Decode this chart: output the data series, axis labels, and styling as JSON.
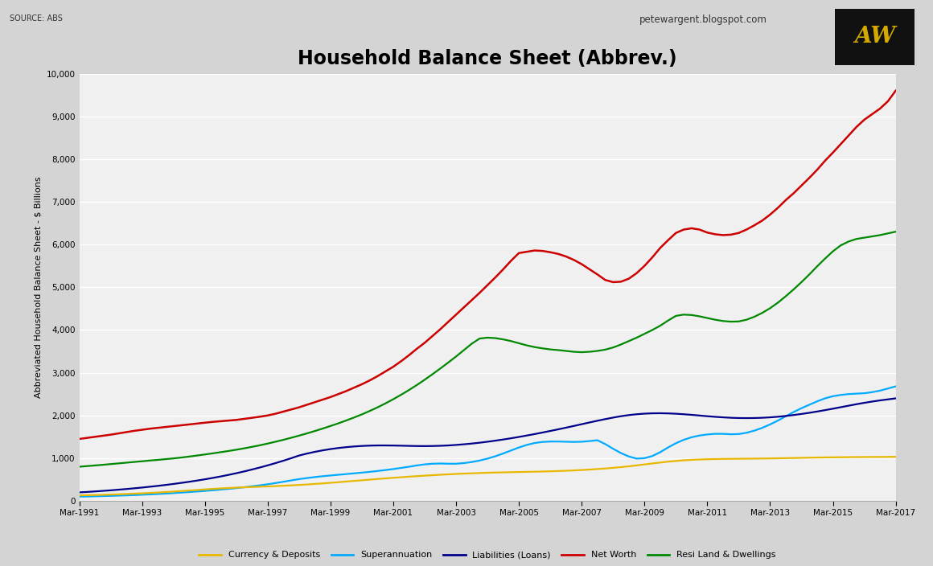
{
  "title": "Household Balance Sheet (Abbrev.)",
  "source_text": "SOURCE: ABS",
  "website_text": "petewargent.blogspot.com",
  "ylabel": "Abbreviated Household Balance Sheet - $ Billions",
  "background_color": "#d4d4d4",
  "plot_bg_color": "#f0f0f0",
  "x_labels": [
    "Mar-1991",
    "Mar-1993",
    "Mar-1995",
    "Mar-1997",
    "Mar-1999",
    "Mar-2001",
    "Mar-2003",
    "Mar-2005",
    "Mar-2007",
    "Mar-2009",
    "Mar-2011",
    "Mar-2013",
    "Mar-2015",
    "Mar-2017"
  ],
  "ylim": [
    0,
    10000
  ],
  "yticks": [
    0,
    1000,
    2000,
    3000,
    4000,
    5000,
    6000,
    7000,
    8000,
    9000,
    10000
  ],
  "series": {
    "currency_deposits": {
      "label": "Currency & Deposits",
      "color": "#e8b800",
      "linewidth": 1.6
    },
    "superannuation": {
      "label": "Superannuation",
      "color": "#00aaff",
      "linewidth": 1.6
    },
    "liabilities": {
      "label": "Liabilities (Loans)",
      "color": "#00008b",
      "linewidth": 1.6
    },
    "net_worth": {
      "label": "Net Worth",
      "color": "#cc0000",
      "linewidth": 1.8
    },
    "real_land": {
      "label": "Resi Land & Dwellings",
      "color": "#008800",
      "linewidth": 1.6
    }
  }
}
